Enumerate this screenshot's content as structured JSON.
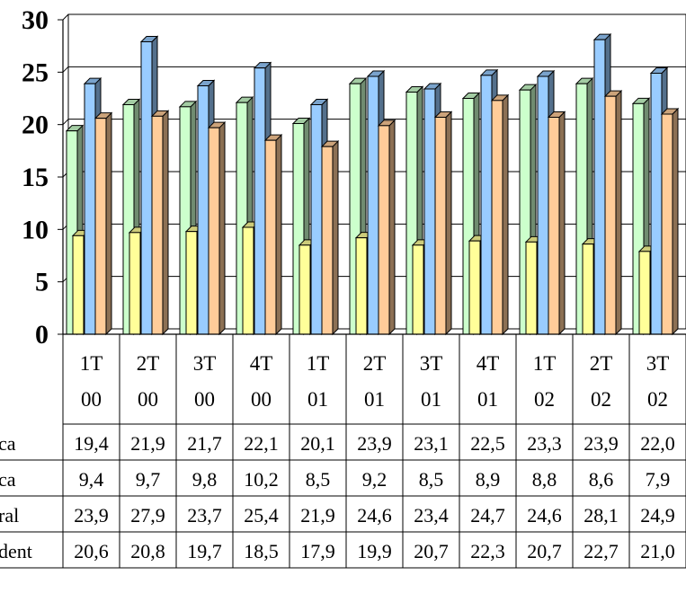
{
  "chart_data": {
    "type": "bar",
    "categories": [
      [
        "1T",
        "00"
      ],
      [
        "2T",
        "00"
      ],
      [
        "3T",
        "00"
      ],
      [
        "4T",
        "00"
      ],
      [
        "1T",
        "01"
      ],
      [
        "2T",
        "01"
      ],
      [
        "3T",
        "01"
      ],
      [
        "4T",
        "01"
      ],
      [
        "1T",
        "02"
      ],
      [
        "2T",
        "02"
      ],
      [
        "3T",
        "02"
      ]
    ],
    "ylim": [
      0,
      30
    ],
    "yticks": [
      "0",
      "5",
      "10",
      "15",
      "20",
      "25",
      "30"
    ],
    "grid": true,
    "series": [
      {
        "name": "ca",
        "color": "#ccffcc",
        "values": [
          19.4,
          21.9,
          21.7,
          22.1,
          20.1,
          23.9,
          23.1,
          22.5,
          23.3,
          23.9,
          22.0
        ]
      },
      {
        "name": "ca",
        "color": "#ffff99",
        "values": [
          9.4,
          9.7,
          9.8,
          10.2,
          8.5,
          9.2,
          8.5,
          8.9,
          8.8,
          8.6,
          7.9
        ]
      },
      {
        "name": "ral",
        "color": "#99ccff",
        "values": [
          23.9,
          27.9,
          23.7,
          25.4,
          21.9,
          24.6,
          23.4,
          24.7,
          24.6,
          28.1,
          24.9
        ]
      },
      {
        "name": "dent",
        "color": "#ffcc99",
        "values": [
          20.6,
          20.8,
          19.7,
          18.5,
          17.9,
          19.9,
          20.7,
          22.3,
          20.7,
          22.7,
          21.0
        ]
      }
    ],
    "table": [
      [
        "19,4",
        "21,9",
        "21,7",
        "22,1",
        "20,1",
        "23,9",
        "23,1",
        "22,5",
        "23,3",
        "23,9",
        "22,0"
      ],
      [
        "9,4",
        "9,7",
        "9,8",
        "10,2",
        "8,5",
        "9,2",
        "8,5",
        "8,9",
        "8,8",
        "8,6",
        "7,9"
      ],
      [
        "23,9",
        "27,9",
        "23,7",
        "25,4",
        "21,9",
        "24,6",
        "23,4",
        "24,7",
        "24,6",
        "28,1",
        "24,9"
      ],
      [
        "20,6",
        "20,8",
        "19,7",
        "18,5",
        "17,9",
        "19,9",
        "20,7",
        "22,3",
        "20,7",
        "22,7",
        "21,0"
      ]
    ]
  }
}
